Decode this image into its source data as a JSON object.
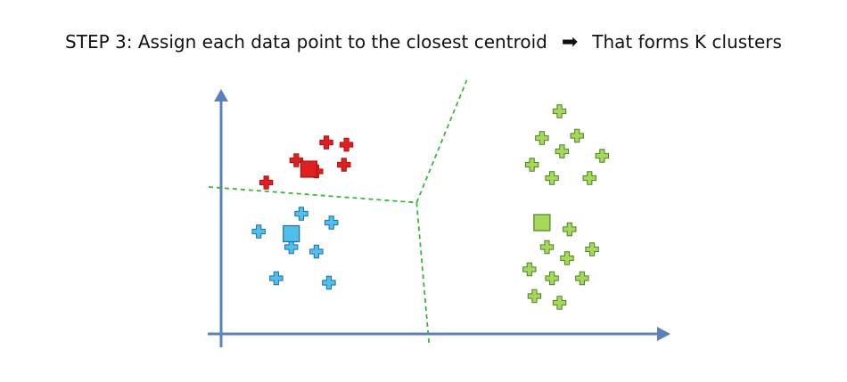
{
  "title": {
    "step_text": "STEP 3: Assign each data point to the closest centroid",
    "arrow_glyph": "➡",
    "result_text": "That forms K clusters"
  },
  "colors": {
    "red": "#e02020",
    "red_dark": "#b01010",
    "blue": "#4fbfee",
    "blue_dark": "#1f6fa0",
    "green": "#a6d85a",
    "green_dark": "#4f7f2a",
    "axis": "#5b82b8",
    "boundary": "#3cb53c"
  },
  "chart_data": {
    "type": "scatter",
    "clusters": [
      {
        "color": "red",
        "centroid": [
          3.5,
          7.4
        ],
        "points": [
          [
            4.2,
            8.6
          ],
          [
            5.0,
            8.5
          ],
          [
            3.0,
            7.8
          ],
          [
            4.9,
            7.6
          ],
          [
            3.8,
            7.3
          ],
          [
            1.8,
            6.8
          ]
        ]
      },
      {
        "color": "blue",
        "centroid": [
          2.8,
          4.5
        ],
        "points": [
          [
            3.2,
            5.4
          ],
          [
            4.4,
            5.0
          ],
          [
            1.5,
            4.6
          ],
          [
            2.8,
            3.9
          ],
          [
            3.8,
            3.7
          ],
          [
            2.2,
            2.5
          ],
          [
            4.3,
            2.3
          ]
        ]
      },
      {
        "color": "green",
        "centroid": [
          12.8,
          5.0
        ],
        "points": [
          [
            13.5,
            10.0
          ],
          [
            12.8,
            8.8
          ],
          [
            14.2,
            8.9
          ],
          [
            13.6,
            8.2
          ],
          [
            15.2,
            8.0
          ],
          [
            12.4,
            7.6
          ],
          [
            13.2,
            7.0
          ],
          [
            14.7,
            7.0
          ],
          [
            13.9,
            4.7
          ],
          [
            13.0,
            3.9
          ],
          [
            13.8,
            3.4
          ],
          [
            14.8,
            3.8
          ],
          [
            12.3,
            2.9
          ],
          [
            13.2,
            2.5
          ],
          [
            14.4,
            2.5
          ],
          [
            12.5,
            1.7
          ],
          [
            13.5,
            1.4
          ]
        ]
      }
    ],
    "boundaries": [
      [
        [
          -0.5,
          6.6
        ],
        [
          7.8,
          5.9
        ]
      ],
      [
        [
          7.8,
          5.9
        ],
        [
          9.8,
          11.4
        ]
      ],
      [
        [
          7.8,
          5.9
        ],
        [
          8.3,
          -0.5
        ]
      ]
    ],
    "xlim": [
      0,
      17.5
    ],
    "ylim": [
      0,
      11
    ],
    "grid": false
  }
}
